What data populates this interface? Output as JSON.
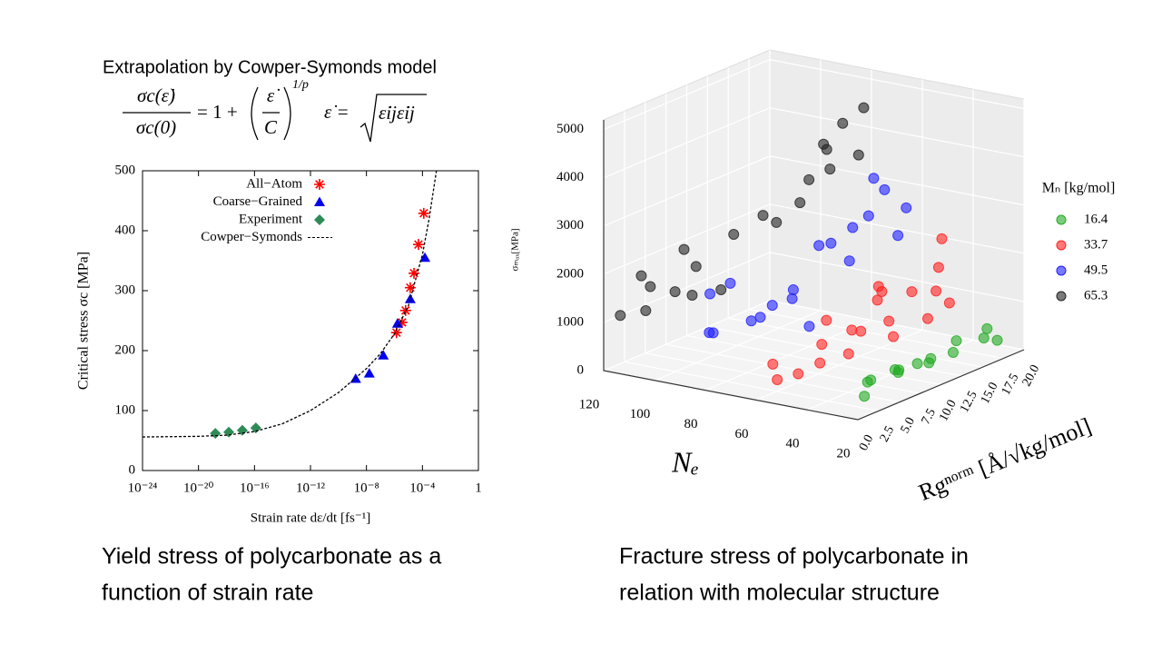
{
  "formula": {
    "title": "Extrapolation by Cowper-Symonds model",
    "parts": [
      "σc(ε̇)",
      "σc(0)",
      "= 1 +",
      "ε̇",
      "C",
      "1/p",
      "ε̇ =",
      "ε̇ijε̇ij"
    ]
  },
  "captions": {
    "left": [
      "Yield stress of polycarbonate as a",
      "function of strain rate"
    ],
    "right": [
      "Fracture stress of polycarbonate in",
      "relation with molecular structure"
    ]
  },
  "chart_data": [
    {
      "type": "scatter",
      "xlabel": "Strain rate dε/dt [fs⁻¹]",
      "ylabel": "Critical stress σc [MPa]",
      "xscale": "log",
      "xlim": [
        1e-24,
        1
      ],
      "xticks": [
        {
          "value": 1e-24,
          "label": "10⁻²⁴"
        },
        {
          "value": 1e-20,
          "label": "10⁻²⁰"
        },
        {
          "value": 1e-16,
          "label": "10⁻¹⁶"
        },
        {
          "value": 1e-12,
          "label": "10⁻¹²"
        },
        {
          "value": 1e-08,
          "label": "10⁻⁸"
        },
        {
          "value": 0.0001,
          "label": "10⁻⁴"
        },
        1
      ],
      "ylim": [
        0,
        500
      ],
      "yticks": [
        0,
        100,
        200,
        300,
        400,
        500
      ],
      "legend": "upper right",
      "series": [
        {
          "name": "All−Atom",
          "color": "#ff0000",
          "marker": "asterisk",
          "x": [
            1.4e-06,
            3.5e-06,
            6.3e-06,
            1.35e-05,
            2.5e-05,
            5.2e-05,
            0.000125
          ],
          "values": [
            230,
            247,
            267,
            305,
            329,
            377,
            429
          ]
        },
        {
          "name": "Coarse−Grained",
          "color": "#0000ee",
          "marker": "triangle",
          "x": [
            1.7e-09,
            1.6e-08,
            1.6e-07,
            1.65e-06,
            1.35e-05,
            0.00015
          ],
          "values": [
            153,
            162,
            192,
            245,
            286,
            355
          ]
        },
        {
          "name": "Experiment",
          "color": "#2e8b57",
          "marker": "diamond",
          "x": [
            1.6e-19,
            1.45e-18,
            1.35e-17,
            1.25e-16
          ],
          "values": [
            62,
            64,
            67,
            71
          ]
        },
        {
          "name": "Cowper−Symonds",
          "color": "#000000",
          "marker": "dashed-line",
          "x": [
            1e-24,
            1e-20,
            1e-18,
            1e-16,
            1e-14,
            1e-12,
            1e-10,
            1e-08,
            1e-07,
            1e-06,
            1e-05,
            0.0001,
            0.0003,
            0.001
          ],
          "values": [
            56,
            57,
            59,
            65,
            78,
            100,
            130,
            170,
            195,
            228,
            275,
            360,
            420,
            500
          ]
        }
      ]
    },
    {
      "type": "scatter3d",
      "xlabel": "Nₑ",
      "ylabel": "Rgⁿᵒʳᵐ [Å/√kg/mol]",
      "zlabel": "σₘₐₓ[MPa]",
      "legend_title": "Mₙ [kg/mol]",
      "xlim": [
        20,
        120
      ],
      "xticks": [
        20,
        40,
        60,
        80,
        100,
        120
      ],
      "ylim": [
        0,
        20
      ],
      "yticks": [
        {
          "value": 0,
          "label": "0.0"
        },
        {
          "value": 2.5,
          "label": "2.5"
        },
        {
          "value": 5,
          "label": "5.0"
        },
        {
          "value": 7.5,
          "label": "7.5"
        },
        {
          "value": 10,
          "label": "10.0"
        },
        {
          "value": 12.5,
          "label": "12.5"
        },
        {
          "value": 15,
          "label": "15.0"
        },
        {
          "value": 17.5,
          "label": "17.5"
        },
        {
          "value": 20,
          "label": "20.0"
        }
      ],
      "zlim": [
        0,
        5200
      ],
      "zticks": [
        0,
        1000,
        2000,
        3000,
        4000,
        5000
      ],
      "grid": true,
      "series": [
        {
          "name": "16.4",
          "color": "#22aa22",
          "x": [
            24,
            26,
            28,
            25,
            27,
            30,
            26,
            24,
            28,
            25,
            27,
            26,
            24,
            28
          ],
          "y": [
            2,
            3,
            4,
            6,
            7,
            8,
            9,
            10,
            11,
            13,
            14,
            17,
            18,
            18
          ],
          "values": [
            300,
            500,
            450,
            550,
            400,
            350,
            450,
            500,
            300,
            400,
            550,
            400,
            300,
            500
          ]
        },
        {
          "name": "33.7",
          "color": "#ff2020",
          "x": [
            35,
            34,
            36,
            33,
            35,
            40,
            42,
            45,
            48,
            50,
            55,
            45,
            40,
            38,
            42,
            60,
            52,
            47,
            38,
            44
          ],
          "y": [
            14,
            14,
            15,
            15,
            13,
            5,
            6,
            8,
            4,
            2,
            1,
            10,
            9,
            8,
            11,
            2,
            6,
            12,
            12,
            3
          ],
          "values": [
            1500,
            2000,
            2500,
            1200,
            1000,
            800,
            1200,
            1000,
            600,
            500,
            400,
            1500,
            1800,
            2000,
            700,
            600,
            1300,
            900,
            1600,
            1100
          ]
        },
        {
          "name": "49.5",
          "color": "#2020ff",
          "x": [
            55,
            52,
            50,
            58,
            53,
            56,
            60,
            70,
            75,
            80,
            85,
            65,
            72,
            90,
            68,
            62,
            78,
            88,
            50
          ],
          "y": [
            12,
            13,
            14,
            11,
            12,
            10,
            9,
            5,
            4,
            3,
            2,
            6,
            8,
            4,
            10,
            7,
            6,
            3,
            15
          ],
          "values": [
            3000,
            3500,
            2500,
            2800,
            3800,
            2200,
            2600,
            1500,
            1200,
            2000,
            1000,
            1800,
            1400,
            800,
            2400,
            1000,
            1100,
            1700,
            3000
          ]
        },
        {
          "name": "65.3",
          "color": "#222222",
          "x": [
            75,
            78,
            72,
            80,
            76,
            82,
            85,
            90,
            95,
            100,
            105,
            110,
            115,
            120,
            100,
            95,
            108,
            118,
            88,
            70
          ],
          "y": [
            15,
            14,
            16,
            15,
            13,
            12,
            14,
            10,
            8,
            5,
            4,
            2,
            3,
            2,
            8,
            3,
            6,
            5,
            11,
            16
          ],
          "values": [
            4500,
            4000,
            3800,
            3500,
            4200,
            3000,
            3300,
            2800,
            2500,
            2000,
            1500,
            1200,
            1800,
            1000,
            1300,
            1600,
            2200,
            1400,
            2600,
            4800
          ]
        }
      ]
    }
  ]
}
